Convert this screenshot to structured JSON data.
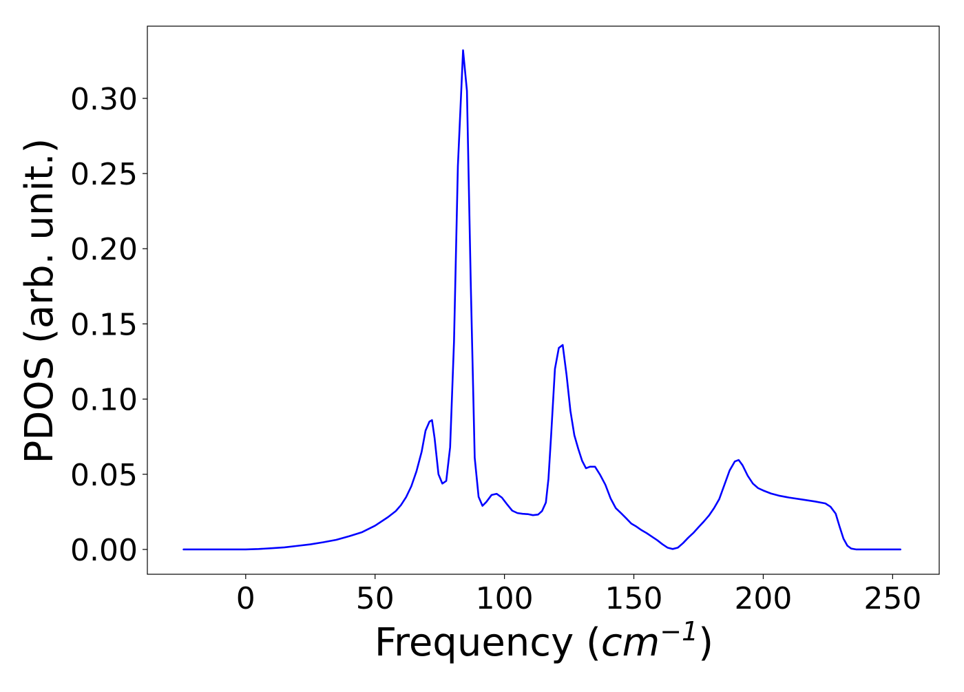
{
  "chart_data": {
    "type": "line",
    "title": "",
    "xlabel": "Frequency (",
    "xlabel_math": "cm",
    "xlabel_exponent": "−1",
    "xlabel_close": ")",
    "ylabel": "PDOS (arb. unit.)",
    "xlim": [
      -38,
      268
    ],
    "ylim": [
      -0.0165,
      0.348
    ],
    "xticks": [
      0,
      50,
      100,
      150,
      200,
      250
    ],
    "xtick_labels": [
      "0",
      "50",
      "100",
      "150",
      "200",
      "250"
    ],
    "yticks": [
      0.0,
      0.05,
      0.1,
      0.15,
      0.2,
      0.25,
      0.3
    ],
    "ytick_labels": [
      "0.00",
      "0.05",
      "0.10",
      "0.15",
      "0.20",
      "0.25",
      "0.30"
    ],
    "grid": false,
    "legend": "none",
    "series": [
      {
        "color": "#0000ff",
        "x": [
          -24,
          -10,
          0,
          5,
          10,
          15,
          20,
          25,
          30,
          35,
          40,
          45,
          50,
          55,
          58,
          60,
          62,
          64,
          66,
          68,
          69.5,
          71,
          72,
          73,
          74.5,
          76,
          77.5,
          79,
          80.5,
          82,
          84,
          85.5,
          87,
          88.5,
          90,
          91.5,
          93,
          95,
          97,
          99,
          101,
          103,
          105,
          107,
          109,
          111,
          113,
          114.5,
          116,
          117,
          118,
          119.5,
          121,
          122.5,
          124,
          125.5,
          127,
          128.5,
          130,
          131.5,
          133,
          135,
          137,
          139,
          141,
          143,
          145,
          147,
          149,
          151,
          153,
          155,
          157,
          159,
          161,
          163,
          165,
          167,
          169,
          171,
          173,
          175,
          177,
          179,
          181,
          183,
          185,
          187,
          189,
          190.5,
          192,
          194,
          196,
          198,
          200,
          203,
          206,
          210,
          215,
          220,
          224,
          226,
          228,
          229.5,
          231,
          232.5,
          234,
          236,
          240,
          245,
          253
        ],
        "y": [
          0.0,
          0.0,
          0.0,
          0.0003,
          0.0008,
          0.0014,
          0.0024,
          0.0034,
          0.0048,
          0.0064,
          0.0088,
          0.0115,
          0.0158,
          0.0215,
          0.0255,
          0.0295,
          0.0348,
          0.042,
          0.052,
          0.065,
          0.079,
          0.085,
          0.086,
          0.074,
          0.05,
          0.0438,
          0.0456,
          0.068,
          0.138,
          0.255,
          0.332,
          0.305,
          0.175,
          0.061,
          0.035,
          0.029,
          0.0316,
          0.0362,
          0.037,
          0.0345,
          0.03,
          0.0258,
          0.0242,
          0.0237,
          0.0235,
          0.0228,
          0.0232,
          0.0255,
          0.0312,
          0.047,
          0.075,
          0.12,
          0.134,
          0.136,
          0.116,
          0.092,
          0.076,
          0.067,
          0.059,
          0.054,
          0.055,
          0.055,
          0.0495,
          0.043,
          0.034,
          0.0275,
          0.0242,
          0.0208,
          0.0172,
          0.0152,
          0.0128,
          0.0108,
          0.0085,
          0.0062,
          0.0035,
          0.0012,
          0.0003,
          0.0012,
          0.0042,
          0.0078,
          0.011,
          0.0148,
          0.0185,
          0.0225,
          0.0275,
          0.0335,
          0.043,
          0.0525,
          0.0585,
          0.0595,
          0.056,
          0.049,
          0.0438,
          0.0408,
          0.0392,
          0.0372,
          0.0358,
          0.0345,
          0.0332,
          0.0319,
          0.0306,
          0.0284,
          0.0238,
          0.0152,
          0.0072,
          0.0025,
          0.0006,
          0.0,
          0.0,
          0.0,
          0.0
        ]
      }
    ]
  }
}
